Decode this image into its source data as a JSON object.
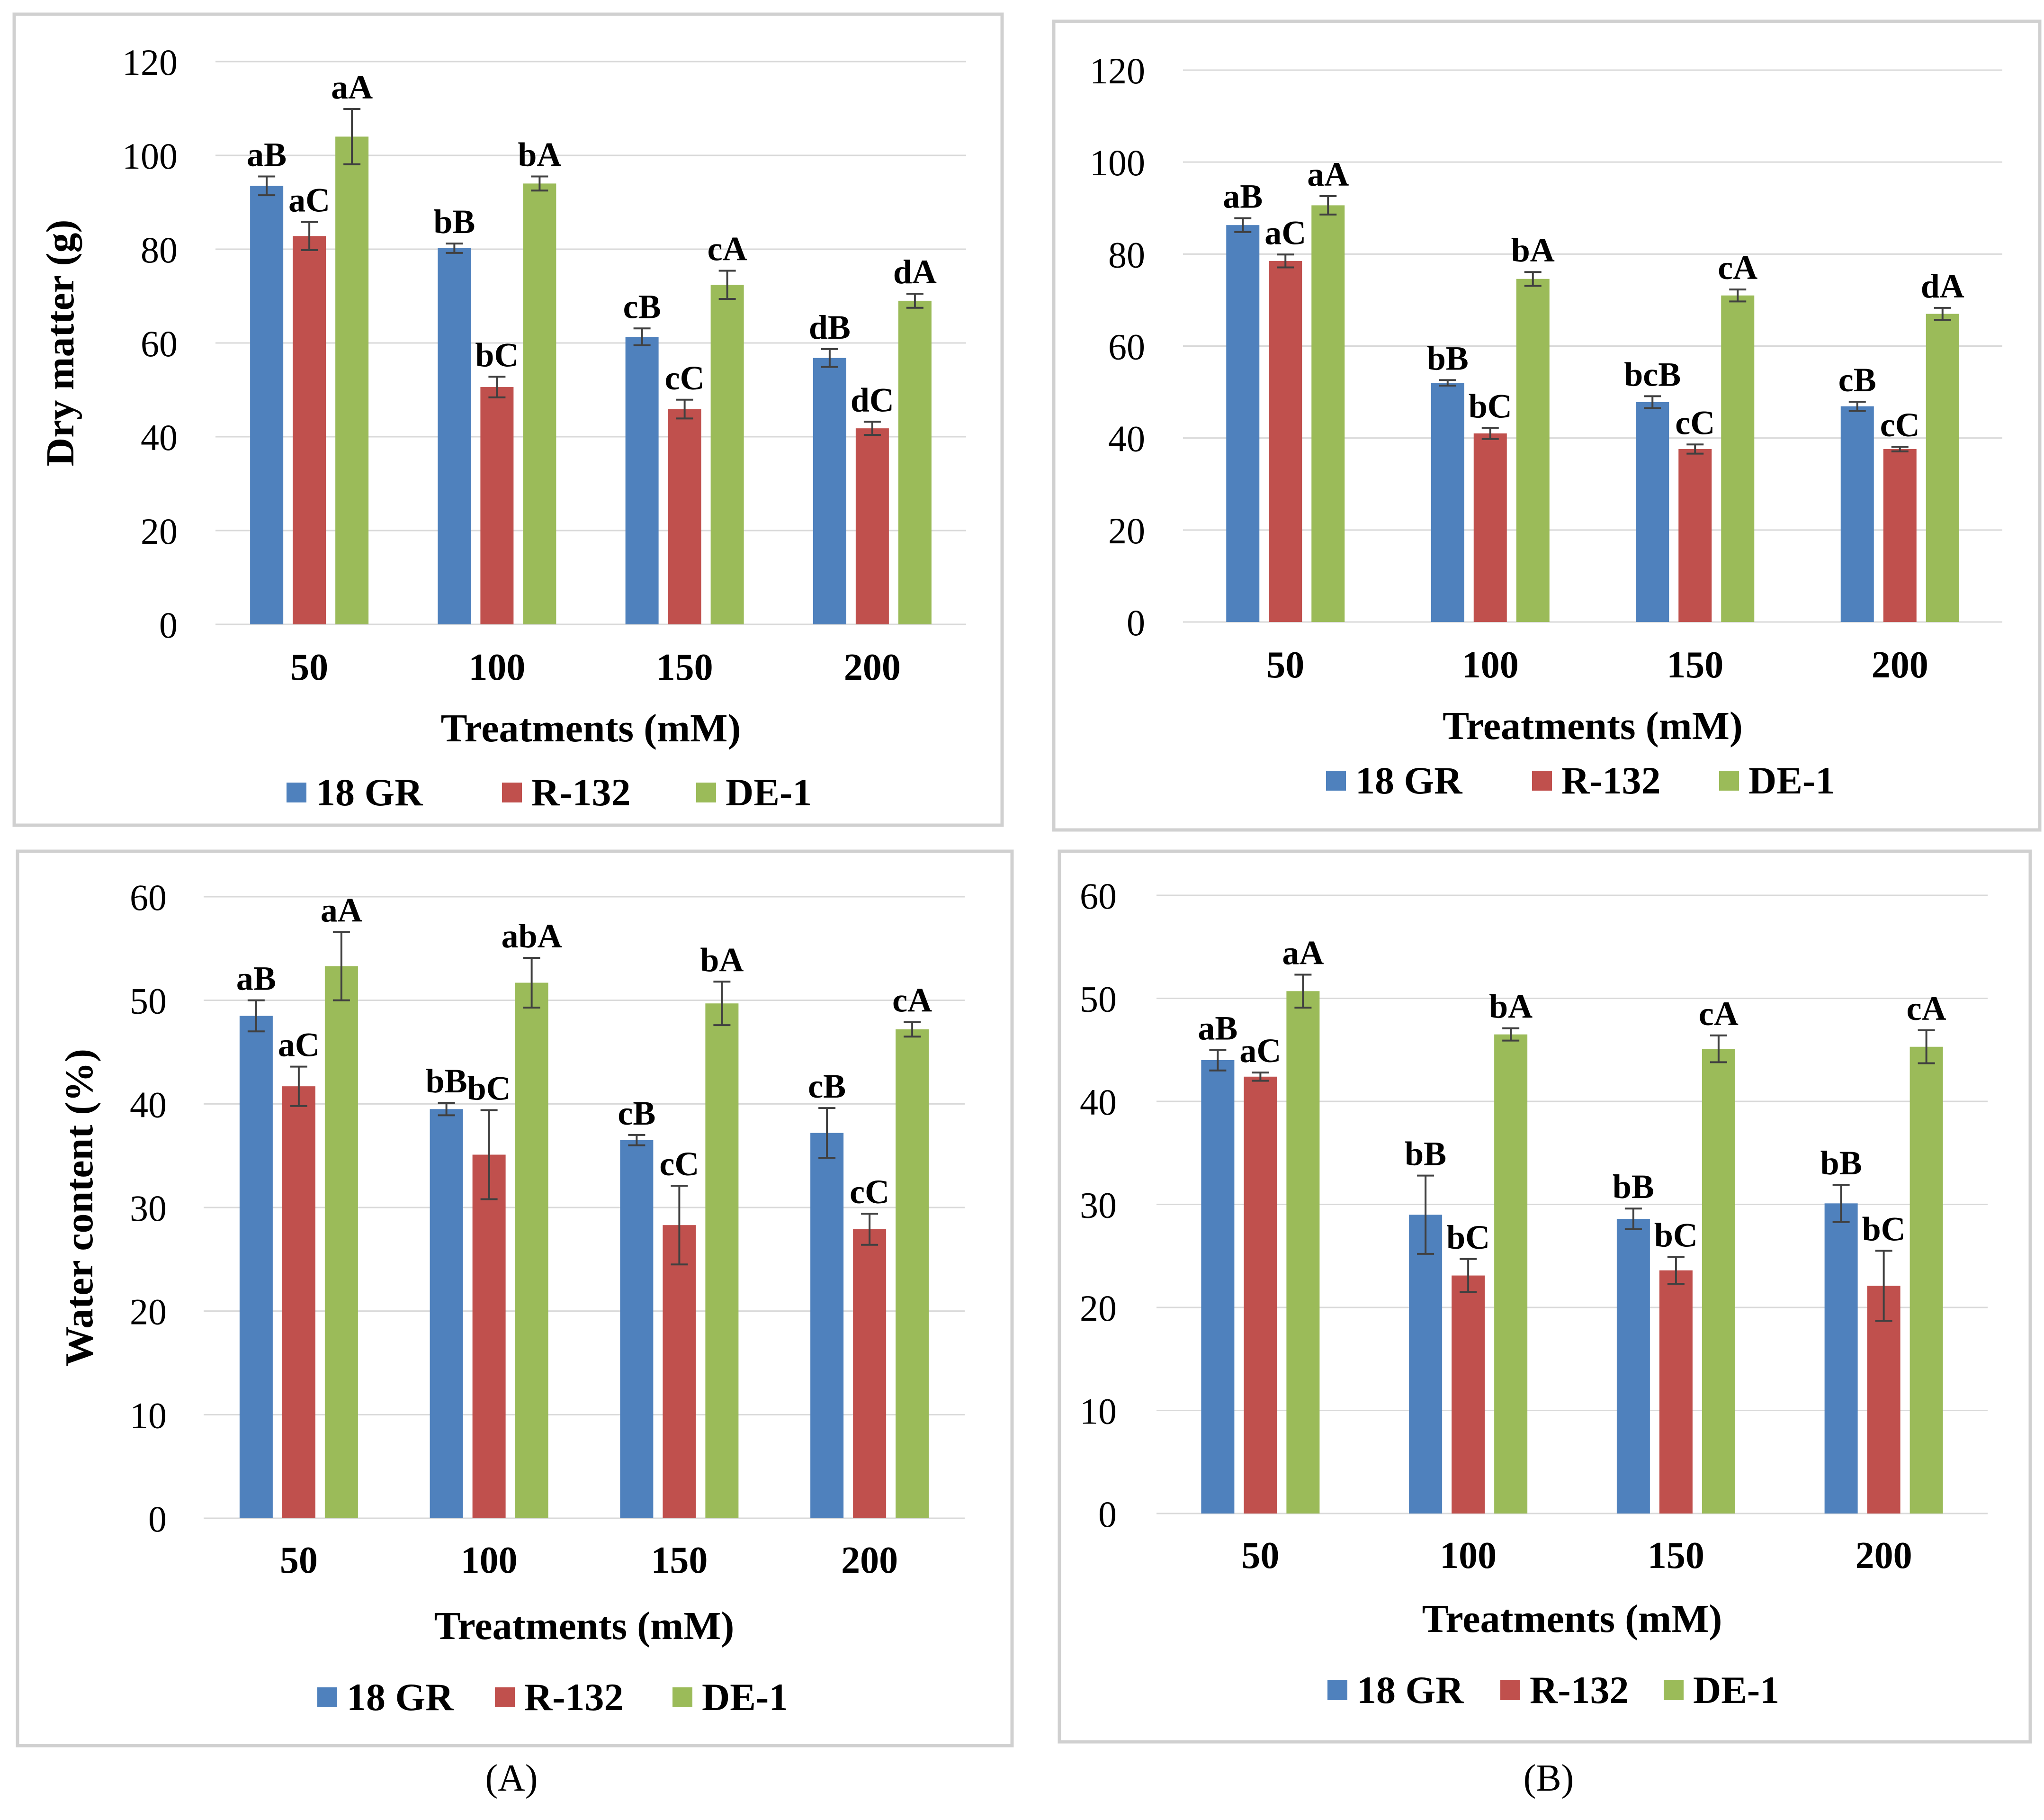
{
  "figure": {
    "panel_labels": [
      "(A)",
      "(B)"
    ]
  },
  "chart_data": [
    {
      "type": "bar",
      "panel": "A",
      "title": "",
      "xlabel": "Treatments (mM)",
      "ylabel": "Dry matter (g)",
      "ylim": [
        0,
        120
      ],
      "yticks": [
        "0",
        "20",
        "40",
        "60",
        "80",
        "100",
        "120"
      ],
      "grid": true,
      "legend_position": "bottom",
      "categories": [
        "50",
        "100",
        "150",
        "200"
      ],
      "series": [
        {
          "name": "18 GR",
          "color": "#4F81BD",
          "values": [
            93.5,
            80.2,
            61.3,
            56.8
          ],
          "errors": [
            2.0,
            1.0,
            1.8,
            1.9
          ],
          "labels": [
            "aB",
            "bB",
            "cB",
            "dB"
          ]
        },
        {
          "name": "R-132",
          "color": "#C0504D",
          "values": [
            82.8,
            50.6,
            45.9,
            41.8
          ],
          "errors": [
            3.0,
            2.2,
            2.0,
            1.4
          ],
          "labels": [
            "aC",
            "bC",
            "cC",
            "dC"
          ]
        },
        {
          "name": "DE-1",
          "color": "#9BBB59",
          "values": [
            104.0,
            94.0,
            72.4,
            69.0
          ],
          "errors": [
            5.9,
            1.5,
            3.0,
            1.5
          ],
          "labels": [
            "aA",
            "bA",
            "cA",
            "dA"
          ]
        }
      ]
    },
    {
      "type": "bar",
      "panel": "B",
      "title": "",
      "xlabel": "Treatments (mM)",
      "ylabel": "",
      "ylim": [
        0,
        120
      ],
      "yticks": [
        "0",
        "20",
        "40",
        "60",
        "80",
        "100",
        "120"
      ],
      "grid": true,
      "legend_position": "bottom",
      "categories": [
        "50",
        "100",
        "150",
        "200"
      ],
      "series": [
        {
          "name": "18 GR",
          "color": "#4F81BD",
          "values": [
            86.3,
            52.0,
            47.8,
            46.9
          ],
          "errors": [
            1.5,
            0.6,
            1.3,
            1.0
          ],
          "labels": [
            "aB",
            "bB",
            "bcB",
            "cB"
          ]
        },
        {
          "name": "R-132",
          "color": "#C0504D",
          "values": [
            78.5,
            41.0,
            37.6,
            37.6
          ],
          "errors": [
            1.4,
            1.2,
            1.0,
            0.5
          ],
          "labels": [
            "aC",
            "bC",
            "cC",
            "cC"
          ]
        },
        {
          "name": "DE-1",
          "color": "#9BBB59",
          "values": [
            90.6,
            74.6,
            71.0,
            67.0
          ],
          "errors": [
            2.0,
            1.5,
            1.3,
            1.3
          ],
          "labels": [
            "aA",
            "bA",
            "cA",
            "dA"
          ]
        }
      ]
    },
    {
      "type": "bar",
      "panel": "A",
      "title": "",
      "xlabel": "Treatments  (mM)",
      "ylabel": "Water content (%)",
      "ylim": [
        0,
        60
      ],
      "yticks": [
        "0",
        "10",
        "20",
        "30",
        "40",
        "50",
        "60"
      ],
      "grid": true,
      "legend_position": "bottom",
      "categories": [
        "50",
        "100",
        "150",
        "200"
      ],
      "series": [
        {
          "name": "18 GR",
          "color": "#4F81BD",
          "values": [
            48.5,
            39.5,
            36.5,
            37.2
          ],
          "errors": [
            1.5,
            0.6,
            0.5,
            2.4
          ],
          "labels": [
            "aB",
            "bB",
            "cB",
            "cB"
          ]
        },
        {
          "name": "R-132",
          "color": "#C0504D",
          "values": [
            41.7,
            35.1,
            28.3,
            27.9
          ],
          "errors": [
            1.9,
            4.3,
            3.8,
            1.5
          ],
          "labels": [
            "aC",
            "bC",
            "cC",
            "cC"
          ]
        },
        {
          "name": "DE-1",
          "color": "#9BBB59",
          "values": [
            53.3,
            51.7,
            49.7,
            47.2
          ],
          "errors": [
            3.3,
            2.4,
            2.1,
            0.7
          ],
          "labels": [
            "aA",
            "abA",
            "bA",
            "cA"
          ]
        }
      ]
    },
    {
      "type": "bar",
      "panel": "B",
      "title": "",
      "xlabel": "Treatments (mM)",
      "ylabel": "",
      "ylim": [
        0,
        60
      ],
      "yticks": [
        "0",
        "10",
        "20",
        "30",
        "40",
        "50",
        "60"
      ],
      "grid": true,
      "legend_position": "bottom",
      "categories": [
        "50",
        "100",
        "150",
        "200"
      ],
      "series": [
        {
          "name": "18 GR",
          "color": "#4F81BD",
          "values": [
            44.0,
            29.0,
            28.6,
            30.1
          ],
          "errors": [
            1.0,
            3.8,
            1.0,
            1.8
          ],
          "labels": [
            "aB",
            "bB",
            "bB",
            "bB"
          ]
        },
        {
          "name": "R-132",
          "color": "#C0504D",
          "values": [
            42.4,
            23.1,
            23.6,
            22.1
          ],
          "errors": [
            0.4,
            1.6,
            1.3,
            3.4
          ],
          "labels": [
            "aC",
            "bC",
            "bC",
            "bC"
          ]
        },
        {
          "name": "DE-1",
          "color": "#9BBB59",
          "values": [
            50.7,
            46.5,
            45.1,
            45.3
          ],
          "errors": [
            1.6,
            0.6,
            1.3,
            1.6
          ],
          "labels": [
            "aA",
            "bA",
            "cA",
            "cA"
          ]
        }
      ]
    }
  ]
}
